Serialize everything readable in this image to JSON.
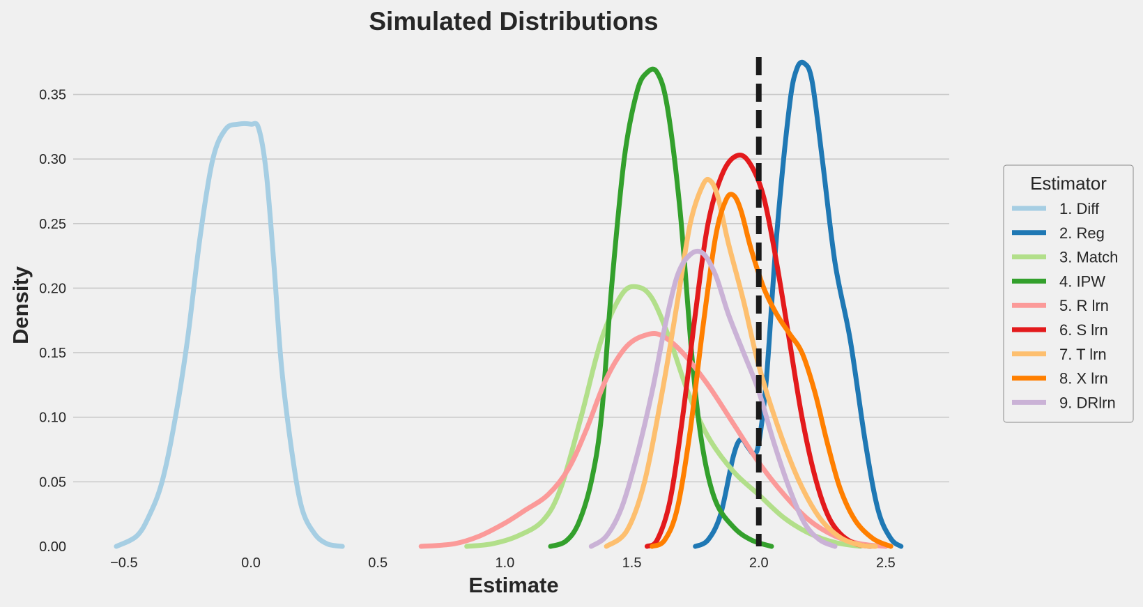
{
  "chart_data": {
    "type": "line",
    "title": "Simulated Distributions",
    "xlabel": "Estimate",
    "ylabel": "Density",
    "xlim": [
      -0.7,
      2.75
    ],
    "ylim": [
      0,
      0.38
    ],
    "x_ticks": [
      -0.5,
      0.0,
      0.5,
      1.0,
      1.5,
      2.0,
      2.5
    ],
    "x_tick_labels": [
      "−0.5",
      "0.0",
      "0.5",
      "1.0",
      "1.5",
      "2.0",
      "2.5"
    ],
    "y_ticks": [
      0.0,
      0.05,
      0.1,
      0.15,
      0.2,
      0.25,
      0.3,
      0.35
    ],
    "y_tick_labels": [
      "0.00",
      "0.05",
      "0.10",
      "0.15",
      "0.20",
      "0.25",
      "0.30",
      "0.35"
    ],
    "grid": "horizontal",
    "reference_line": {
      "x": 2.0,
      "style": "dashed",
      "color": "#1a1a1a"
    },
    "legend": {
      "title": "Estimator",
      "placement": "right"
    },
    "series": [
      {
        "name": "1. Diff",
        "color": "#a6cee3",
        "points": [
          [
            -0.53,
            0.0
          ],
          [
            -0.45,
            0.008
          ],
          [
            -0.4,
            0.024
          ],
          [
            -0.35,
            0.05
          ],
          [
            -0.3,
            0.097
          ],
          [
            -0.25,
            0.16
          ],
          [
            -0.2,
            0.24
          ],
          [
            -0.15,
            0.3
          ],
          [
            -0.1,
            0.323
          ],
          [
            -0.05,
            0.327
          ],
          [
            0.0,
            0.327
          ],
          [
            0.03,
            0.324
          ],
          [
            0.06,
            0.29
          ],
          [
            0.09,
            0.22
          ],
          [
            0.12,
            0.14
          ],
          [
            0.16,
            0.075
          ],
          [
            0.2,
            0.03
          ],
          [
            0.25,
            0.01
          ],
          [
            0.3,
            0.002
          ],
          [
            0.36,
            0.0
          ]
        ]
      },
      {
        "name": "2. Reg",
        "color": "#1f78b4",
        "points": [
          [
            1.75,
            0.0
          ],
          [
            1.8,
            0.005
          ],
          [
            1.85,
            0.025
          ],
          [
            1.9,
            0.07
          ],
          [
            1.93,
            0.083
          ],
          [
            1.96,
            0.076
          ],
          [
            1.98,
            0.072
          ],
          [
            2.0,
            0.08
          ],
          [
            2.03,
            0.13
          ],
          [
            2.07,
            0.24
          ],
          [
            2.12,
            0.34
          ],
          [
            2.15,
            0.37
          ],
          [
            2.18,
            0.374
          ],
          [
            2.21,
            0.36
          ],
          [
            2.25,
            0.3
          ],
          [
            2.3,
            0.22
          ],
          [
            2.36,
            0.16
          ],
          [
            2.42,
            0.08
          ],
          [
            2.47,
            0.028
          ],
          [
            2.52,
            0.006
          ],
          [
            2.56,
            0.0
          ]
        ]
      },
      {
        "name": "3. Match",
        "color": "#b2df8a",
        "points": [
          [
            0.85,
            0.0
          ],
          [
            0.95,
            0.002
          ],
          [
            1.05,
            0.008
          ],
          [
            1.15,
            0.02
          ],
          [
            1.22,
            0.045
          ],
          [
            1.3,
            0.1
          ],
          [
            1.38,
            0.16
          ],
          [
            1.46,
            0.195
          ],
          [
            1.52,
            0.201
          ],
          [
            1.58,
            0.192
          ],
          [
            1.65,
            0.16
          ],
          [
            1.72,
            0.12
          ],
          [
            1.8,
            0.085
          ],
          [
            1.9,
            0.058
          ],
          [
            2.0,
            0.04
          ],
          [
            2.1,
            0.022
          ],
          [
            2.2,
            0.01
          ],
          [
            2.3,
            0.003
          ],
          [
            2.4,
            0.0
          ]
        ]
      },
      {
        "name": "4. IPW",
        "color": "#33a02c",
        "points": [
          [
            1.18,
            0.0
          ],
          [
            1.24,
            0.004
          ],
          [
            1.29,
            0.018
          ],
          [
            1.34,
            0.05
          ],
          [
            1.38,
            0.1
          ],
          [
            1.42,
            0.2
          ],
          [
            1.47,
            0.3
          ],
          [
            1.52,
            0.352
          ],
          [
            1.56,
            0.367
          ],
          [
            1.6,
            0.367
          ],
          [
            1.64,
            0.34
          ],
          [
            1.69,
            0.26
          ],
          [
            1.74,
            0.14
          ],
          [
            1.78,
            0.075
          ],
          [
            1.83,
            0.035
          ],
          [
            1.9,
            0.015
          ],
          [
            1.97,
            0.005
          ],
          [
            2.05,
            0.0
          ]
        ]
      },
      {
        "name": "5. R lrn",
        "color": "#fb9a99",
        "points": [
          [
            0.67,
            0.0
          ],
          [
            0.8,
            0.002
          ],
          [
            0.9,
            0.008
          ],
          [
            1.0,
            0.018
          ],
          [
            1.08,
            0.028
          ],
          [
            1.17,
            0.04
          ],
          [
            1.25,
            0.06
          ],
          [
            1.32,
            0.09
          ],
          [
            1.4,
            0.13
          ],
          [
            1.48,
            0.155
          ],
          [
            1.56,
            0.164
          ],
          [
            1.62,
            0.163
          ],
          [
            1.7,
            0.15
          ],
          [
            1.8,
            0.125
          ],
          [
            1.9,
            0.095
          ],
          [
            2.0,
            0.065
          ],
          [
            2.1,
            0.04
          ],
          [
            2.2,
            0.02
          ],
          [
            2.3,
            0.008
          ],
          [
            2.4,
            0.002
          ],
          [
            2.5,
            0.0
          ]
        ]
      },
      {
        "name": "6. S lrn",
        "color": "#e31a1c",
        "points": [
          [
            1.56,
            0.0
          ],
          [
            1.6,
            0.005
          ],
          [
            1.65,
            0.035
          ],
          [
            1.7,
            0.1
          ],
          [
            1.75,
            0.18
          ],
          [
            1.8,
            0.25
          ],
          [
            1.86,
            0.29
          ],
          [
            1.92,
            0.303
          ],
          [
            1.97,
            0.295
          ],
          [
            2.02,
            0.27
          ],
          [
            2.07,
            0.22
          ],
          [
            2.12,
            0.16
          ],
          [
            2.17,
            0.1
          ],
          [
            2.22,
            0.055
          ],
          [
            2.27,
            0.025
          ],
          [
            2.32,
            0.01
          ],
          [
            2.38,
            0.002
          ],
          [
            2.44,
            0.0
          ]
        ]
      },
      {
        "name": "7. T lrn",
        "color": "#fdbf6f",
        "points": [
          [
            1.4,
            0.0
          ],
          [
            1.48,
            0.012
          ],
          [
            1.55,
            0.05
          ],
          [
            1.62,
            0.12
          ],
          [
            1.68,
            0.19
          ],
          [
            1.73,
            0.25
          ],
          [
            1.78,
            0.28
          ],
          [
            1.81,
            0.283
          ],
          [
            1.84,
            0.27
          ],
          [
            1.88,
            0.235
          ],
          [
            1.94,
            0.19
          ],
          [
            2.0,
            0.14
          ],
          [
            2.08,
            0.09
          ],
          [
            2.16,
            0.05
          ],
          [
            2.24,
            0.022
          ],
          [
            2.32,
            0.007
          ],
          [
            2.4,
            0.001
          ],
          [
            2.46,
            0.0
          ]
        ]
      },
      {
        "name": "8. X lrn",
        "color": "#ff7f00",
        "points": [
          [
            1.58,
            0.0
          ],
          [
            1.63,
            0.005
          ],
          [
            1.68,
            0.03
          ],
          [
            1.73,
            0.09
          ],
          [
            1.78,
            0.17
          ],
          [
            1.83,
            0.24
          ],
          [
            1.87,
            0.268
          ],
          [
            1.9,
            0.272
          ],
          [
            1.93,
            0.26
          ],
          [
            1.97,
            0.23
          ],
          [
            2.02,
            0.2
          ],
          [
            2.07,
            0.18
          ],
          [
            2.12,
            0.165
          ],
          [
            2.17,
            0.15
          ],
          [
            2.22,
            0.12
          ],
          [
            2.27,
            0.08
          ],
          [
            2.32,
            0.045
          ],
          [
            2.38,
            0.02
          ],
          [
            2.45,
            0.006
          ],
          [
            2.52,
            0.0
          ]
        ]
      },
      {
        "name": "9. DRlrn",
        "color": "#cab2d6",
        "points": [
          [
            1.34,
            0.0
          ],
          [
            1.4,
            0.008
          ],
          [
            1.46,
            0.03
          ],
          [
            1.52,
            0.07
          ],
          [
            1.58,
            0.12
          ],
          [
            1.63,
            0.17
          ],
          [
            1.68,
            0.21
          ],
          [
            1.73,
            0.226
          ],
          [
            1.78,
            0.227
          ],
          [
            1.83,
            0.21
          ],
          [
            1.88,
            0.18
          ],
          [
            1.94,
            0.15
          ],
          [
            2.0,
            0.12
          ],
          [
            2.06,
            0.08
          ],
          [
            2.12,
            0.045
          ],
          [
            2.18,
            0.018
          ],
          [
            2.24,
            0.005
          ],
          [
            2.3,
            0.0
          ]
        ]
      }
    ]
  }
}
